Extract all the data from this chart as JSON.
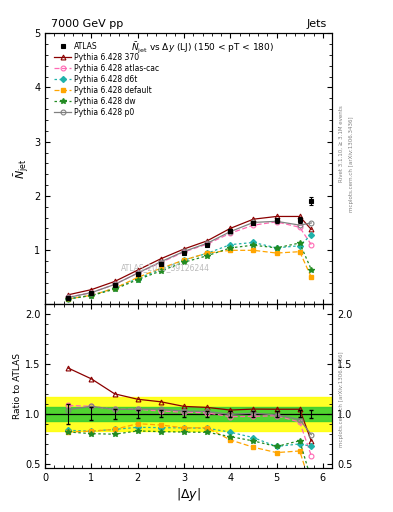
{
  "title_top": "7000 GeV pp",
  "title_right": "Jets",
  "main_subtitle": "N_{jet} vs \\Delta y (LJ) (150 < pT < 180)",
  "watermark": "ATLAS_2011_S9126244",
  "xlabel": "|\\Delta y|",
  "ylabel_main": "$\\bar{N}_{jet}$",
  "ylabel_ratio": "Ratio to ATLAS",
  "right_label1": "Rivet 3.1.10, \\u2265 3.1M events",
  "right_label2": "mcplots.cern.ch [arXiv:1306.3436]",
  "x_atlas": [
    0.5,
    1.0,
    1.5,
    2.0,
    2.5,
    3.0,
    3.5,
    4.0,
    4.5,
    5.0,
    5.5,
    5.75
  ],
  "y_atlas": [
    0.12,
    0.2,
    0.35,
    0.55,
    0.75,
    0.95,
    1.1,
    1.35,
    1.5,
    1.55,
    1.55,
    1.9
  ],
  "y_atlas_err": [
    0.012,
    0.013,
    0.018,
    0.022,
    0.025,
    0.03,
    0.033,
    0.04,
    0.044,
    0.05,
    0.052,
    0.075
  ],
  "x_py370": [
    0.5,
    1.0,
    1.5,
    2.0,
    2.5,
    3.0,
    3.5,
    4.0,
    4.5,
    5.0,
    5.5,
    5.75
  ],
  "y_py370": [
    0.175,
    0.27,
    0.42,
    0.63,
    0.84,
    1.02,
    1.17,
    1.4,
    1.57,
    1.62,
    1.62,
    1.38
  ],
  "x_pyatlas": [
    0.5,
    1.0,
    1.5,
    2.0,
    2.5,
    3.0,
    3.5,
    4.0,
    4.5,
    5.0,
    5.5,
    5.75
  ],
  "y_pyatlas": [
    0.13,
    0.215,
    0.365,
    0.575,
    0.77,
    0.965,
    1.11,
    1.31,
    1.46,
    1.52,
    1.42,
    1.1
  ],
  "x_pyd6t": [
    0.5,
    1.0,
    1.5,
    2.0,
    2.5,
    3.0,
    3.5,
    4.0,
    4.5,
    5.0,
    5.5,
    5.75
  ],
  "y_pyd6t": [
    0.1,
    0.165,
    0.295,
    0.475,
    0.645,
    0.815,
    0.94,
    1.1,
    1.14,
    1.04,
    1.08,
    1.28
  ],
  "x_pydef": [
    0.5,
    1.0,
    1.5,
    2.0,
    2.5,
    3.0,
    3.5,
    4.0,
    4.5,
    5.0,
    5.5,
    5.75
  ],
  "y_pydef": [
    0.098,
    0.165,
    0.295,
    0.495,
    0.665,
    0.815,
    0.945,
    0.995,
    0.995,
    0.945,
    0.97,
    0.5
  ],
  "x_pydw": [
    0.5,
    1.0,
    1.5,
    2.0,
    2.5,
    3.0,
    3.5,
    4.0,
    4.5,
    5.0,
    5.5,
    5.75
  ],
  "y_pydw": [
    0.098,
    0.16,
    0.278,
    0.455,
    0.615,
    0.775,
    0.895,
    1.04,
    1.09,
    1.04,
    1.13,
    0.64
  ],
  "x_pyp0": [
    0.5,
    1.0,
    1.5,
    2.0,
    2.5,
    3.0,
    3.5,
    4.0,
    4.5,
    5.0,
    5.5,
    5.75
  ],
  "y_pyp0": [
    0.125,
    0.215,
    0.365,
    0.575,
    0.785,
    0.975,
    1.125,
    1.34,
    1.51,
    1.53,
    1.46,
    1.5
  ],
  "color_atlas": "#000000",
  "color_370": "#8B0000",
  "color_atlas_cac": "#FF69B4",
  "color_d6t": "#20B2AA",
  "color_default": "#FFA500",
  "color_dw": "#228B22",
  "color_p0": "#808080",
  "band_yellow_lo": 0.83,
  "band_yellow_hi": 1.17,
  "band_green_lo": 0.93,
  "band_green_hi": 1.07,
  "ylim_main": [
    0.0,
    5.0
  ],
  "ylim_ratio": [
    0.45,
    2.1
  ],
  "xlim": [
    0.0,
    6.2
  ],
  "ratio_yticks": [
    0.5,
    1.0,
    1.5,
    2.0
  ],
  "main_yticks": [
    1,
    2,
    3,
    4,
    5
  ]
}
